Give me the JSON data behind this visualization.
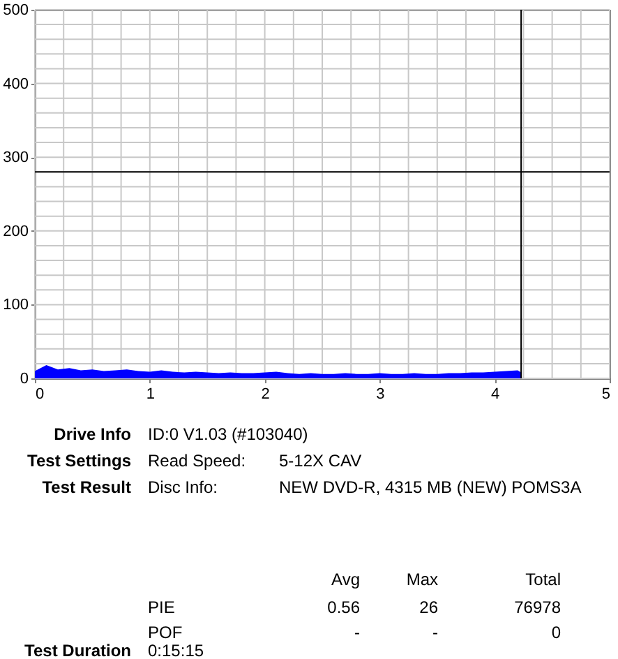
{
  "chart_data": {
    "type": "area",
    "x": [
      0,
      0.1,
      0.2,
      0.3,
      0.4,
      0.5,
      0.6,
      0.7,
      0.8,
      0.9,
      1.0,
      1.1,
      1.2,
      1.3,
      1.4,
      1.5,
      1.6,
      1.7,
      1.8,
      1.9,
      2.0,
      2.1,
      2.2,
      2.3,
      2.4,
      2.5,
      2.6,
      2.7,
      2.8,
      2.9,
      3.0,
      3.1,
      3.2,
      3.3,
      3.4,
      3.5,
      3.6,
      3.7,
      3.8,
      3.9,
      4.0,
      4.1,
      4.2,
      4.23
    ],
    "series": [
      {
        "color": "#0000ff",
        "values": [
          10,
          18,
          12,
          14,
          11,
          12,
          10,
          11,
          12,
          10,
          9,
          11,
          9,
          8,
          9,
          8,
          7,
          8,
          7,
          7,
          8,
          9,
          7,
          6,
          7,
          6,
          6,
          7,
          6,
          6,
          7,
          6,
          6,
          7,
          6,
          6,
          7,
          7,
          8,
          8,
          9,
          10,
          11,
          8
        ]
      }
    ],
    "xlim": [
      0,
      5
    ],
    "xticks": [
      0,
      {
        "value": 0.25,
        "label": null
      },
      {
        "value": 0.5,
        "label": null
      },
      {
        "value": 0.75,
        "label": null
      },
      1,
      {
        "value": 1.25,
        "label": null
      },
      {
        "value": 1.5,
        "label": null
      },
      {
        "value": 1.75,
        "label": null
      },
      2,
      {
        "value": 2.25,
        "label": null
      },
      {
        "value": 2.5,
        "label": null
      },
      {
        "value": 2.75,
        "label": null
      },
      3,
      {
        "value": 3.25,
        "label": null
      },
      {
        "value": 3.5,
        "label": null
      },
      {
        "value": 3.75,
        "label": null
      },
      4,
      {
        "value": 4.25,
        "label": null
      },
      {
        "value": 4.5,
        "label": null
      },
      {
        "value": 4.75,
        "label": null
      },
      5
    ],
    "ylim": [
      0,
      500
    ],
    "yticks": [
      0,
      {
        "value": 20,
        "label": null
      },
      {
        "value": 40,
        "label": null
      },
      {
        "value": 60,
        "label": null
      },
      {
        "value": 80,
        "label": null
      },
      100,
      {
        "value": 120,
        "label": null
      },
      {
        "value": 140,
        "label": null
      },
      {
        "value": 160,
        "label": null
      },
      {
        "value": 180,
        "label": null
      },
      200,
      {
        "value": 220,
        "label": null
      },
      {
        "value": 240,
        "label": null
      },
      {
        "value": 260,
        "label": null
      },
      {
        "value": 280,
        "label": null
      },
      300,
      {
        "value": 320,
        "label": null
      },
      {
        "value": 340,
        "label": null
      },
      {
        "value": 360,
        "label": null
      },
      {
        "value": 380,
        "label": null
      },
      400,
      {
        "value": 420,
        "label": null
      },
      {
        "value": 440,
        "label": null
      },
      {
        "value": 460,
        "label": null
      },
      {
        "value": 480,
        "label": null
      },
      500
    ],
    "grid": true,
    "ref_lines": [
      {
        "axis": "x",
        "value": 4.23,
        "color": "#000000"
      },
      {
        "axis": "y",
        "value": 280,
        "color": "#000000"
      }
    ],
    "annotations": [
      "Drive Info",
      "ID:0 V1.03 (#103040)",
      "Test Settings",
      "Read Speed:",
      "5-12X CAV",
      "Test Result",
      "Disc Info:",
      "NEW DVD-R, 4315 MB (NEW) POMS3A",
      "Avg",
      "Max",
      "Total",
      "PIE",
      "0.56",
      "26",
      "76978",
      "POF",
      "-",
      "-",
      "0",
      "Test Duration",
      "0:15:15"
    ]
  }
}
